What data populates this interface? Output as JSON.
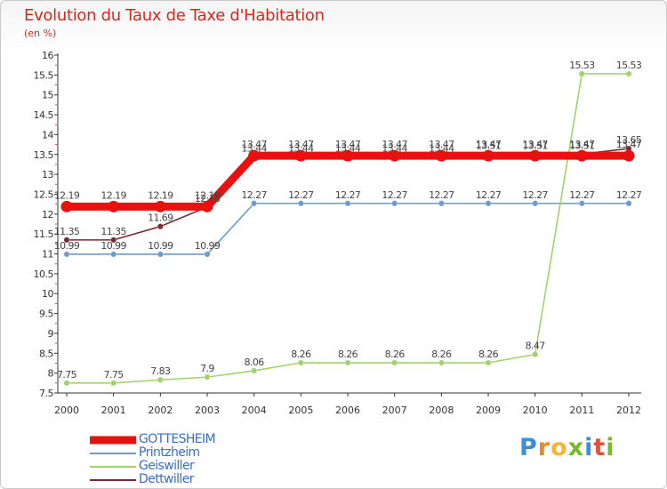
{
  "chart_data": {
    "type": "line",
    "title": "Evolution du Taux de Taxe d'Habitation",
    "subtitle": "(en %)",
    "categories": [
      "2000",
      "2001",
      "2002",
      "2003",
      "2004",
      "2005",
      "2006",
      "2007",
      "2008",
      "2009",
      "2010",
      "2011",
      "2012"
    ],
    "ylim": [
      7.5,
      16
    ],
    "yticks": [
      "7.5",
      "8",
      "8.5",
      "9",
      "9.5",
      "10",
      "10.5",
      "11",
      "11.5",
      "12",
      "12.5",
      "13",
      "13.5",
      "14",
      "14.5",
      "15",
      "15.5",
      "16"
    ],
    "grid": false,
    "series": [
      {
        "name": "GOTTESHEIM",
        "color": "#e8110f",
        "emphasis": true,
        "values": [
          12.19,
          12.19,
          12.19,
          12.19,
          13.47,
          13.47,
          13.47,
          13.47,
          13.47,
          13.47,
          13.47,
          13.47,
          13.47
        ],
        "labels": [
          "12.19",
          "12.19",
          "12.19",
          "12.19",
          "13.47",
          "13.47",
          "13.47",
          "13.47",
          "13.47",
          "13.47",
          "13.47",
          "13.47",
          "13.47"
        ]
      },
      {
        "name": "Printzheim",
        "color": "#6b9bd0",
        "values": [
          10.99,
          10.99,
          10.99,
          10.99,
          12.27,
          12.27,
          12.27,
          12.27,
          12.27,
          12.27,
          12.27,
          12.27,
          12.27
        ],
        "labels": [
          "10.99",
          "10.99",
          "10.99",
          "10.99",
          "12.27",
          "12.27",
          "12.27",
          "12.27",
          "12.27",
          "12.27",
          "12.27",
          "12.27",
          "12.27"
        ]
      },
      {
        "name": "Geiswiller",
        "color": "#9fd46a",
        "values": [
          7.75,
          7.75,
          7.83,
          7.9,
          8.06,
          8.26,
          8.26,
          8.26,
          8.26,
          8.26,
          8.47,
          15.53,
          15.53
        ],
        "labels": [
          "7.75",
          "7.75",
          "7.83",
          "7.9",
          "8.06",
          "8.26",
          "8.26",
          "8.26",
          "8.26",
          "8.26",
          "8.47",
          "15.53",
          "15.53"
        ]
      },
      {
        "name": "Dettwiller",
        "color": "#7a2a32",
        "values": [
          11.35,
          11.35,
          11.69,
          12.18,
          13.44,
          13.44,
          13.44,
          13.44,
          13.44,
          13.51,
          13.51,
          13.51,
          13.65
        ],
        "labels": [
          "11.35",
          "11.35",
          "11.69",
          "12.18",
          "13.44",
          "13.44",
          "13.44",
          "13.44",
          "13.44",
          "13.51",
          "13.51",
          "13.51",
          "13.65"
        ]
      }
    ]
  },
  "logo": {
    "letters": [
      "P",
      "r",
      "o",
      "x",
      "i",
      "t",
      "i"
    ]
  }
}
